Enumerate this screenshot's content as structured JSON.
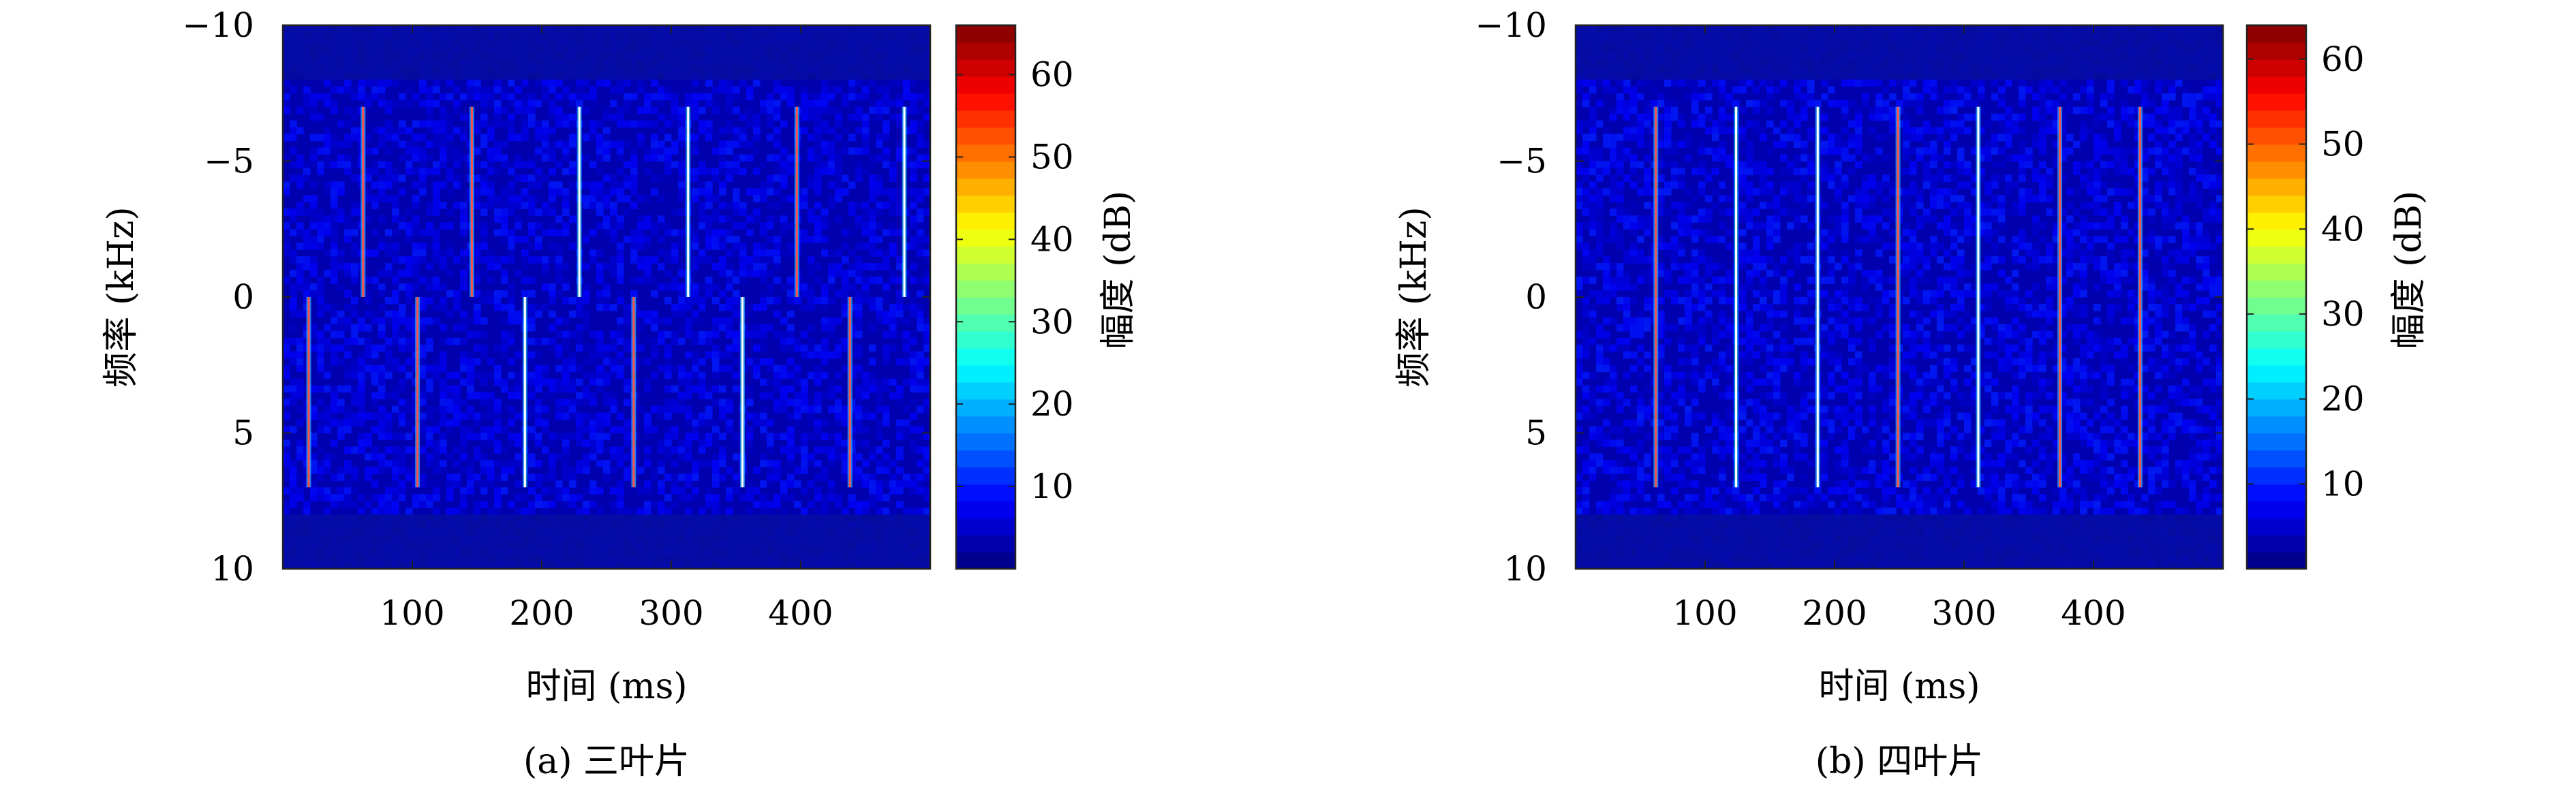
{
  "chart_data": [
    {
      "type": "heatmap",
      "caption": "(a) 三叶片",
      "xlabel": "时间 (ms)",
      "ylabel": "频率 (kHz)",
      "xlim": [
        0,
        500
      ],
      "ylim": [
        -10,
        10
      ],
      "y_reversed": true,
      "xticks": [
        100,
        200,
        300,
        400
      ],
      "yticks": [
        -10,
        -5,
        0,
        5,
        10
      ],
      "colorbar": {
        "label": "幅度 (dB)",
        "ticks": [
          10,
          20,
          30,
          40,
          50,
          60
        ],
        "range": [
          0,
          66
        ],
        "colormap": "jet"
      },
      "background_level_db": 3,
      "band_limits_khz": [
        -8,
        8
      ],
      "flashes": [
        {
          "t": 20,
          "f0": 0,
          "f1": 7,
          "color": "#ff5050"
        },
        {
          "t": 62,
          "f0": -7,
          "f1": 0,
          "color": "#ff5050"
        },
        {
          "t": 104,
          "f0": 0,
          "f1": 7,
          "color": "#ff5050"
        },
        {
          "t": 146,
          "f0": -7,
          "f1": 0,
          "color": "#ff5050"
        },
        {
          "t": 187,
          "f0": 0,
          "f1": 7,
          "color": "#ffffff"
        },
        {
          "t": 229,
          "f0": -7,
          "f1": 0,
          "color": "#ffffff"
        },
        {
          "t": 271,
          "f0": 0,
          "f1": 7,
          "color": "#ff5050"
        },
        {
          "t": 313,
          "f0": -7,
          "f1": 0,
          "color": "#ffffff"
        },
        {
          "t": 355,
          "f0": 0,
          "f1": 7,
          "color": "#ffffff"
        },
        {
          "t": 397,
          "f0": -7,
          "f1": 0,
          "color": "#ff5050"
        },
        {
          "t": 438,
          "f0": 0,
          "f1": 7,
          "color": "#ff5050"
        },
        {
          "t": 480,
          "f0": -7,
          "f1": 0,
          "color": "#ffffff"
        }
      ]
    },
    {
      "type": "heatmap",
      "caption": "(b) 四叶片",
      "xlabel": "时间 (ms)",
      "ylabel": "频率 (kHz)",
      "xlim": [
        0,
        500
      ],
      "ylim": [
        -10,
        10
      ],
      "y_reversed": true,
      "xticks": [
        100,
        200,
        300,
        400
      ],
      "yticks": [
        -10,
        -5,
        0,
        5,
        10
      ],
      "colorbar": {
        "label": "幅度 (dB)",
        "ticks": [
          10,
          20,
          30,
          40,
          50,
          60
        ],
        "range": [
          0,
          64
        ],
        "colormap": "jet"
      },
      "background_level_db": 3,
      "band_limits_khz": [
        -8,
        8
      ],
      "flashes": [
        {
          "t": 62,
          "f0": -7,
          "f1": 7,
          "color": "#ff5050"
        },
        {
          "t": 124,
          "f0": -7,
          "f1": 7,
          "color": "#ffffff"
        },
        {
          "t": 187,
          "f0": -7,
          "f1": 7,
          "color": "#ffffff"
        },
        {
          "t": 249,
          "f0": -7,
          "f1": 7,
          "color": "#ff5050"
        },
        {
          "t": 311,
          "f0": -7,
          "f1": 7,
          "color": "#ffffff"
        },
        {
          "t": 374,
          "f0": -7,
          "f1": 7,
          "color": "#ff5050"
        },
        {
          "t": 436,
          "f0": -7,
          "f1": 7,
          "color": "#ff5050"
        }
      ]
    }
  ]
}
